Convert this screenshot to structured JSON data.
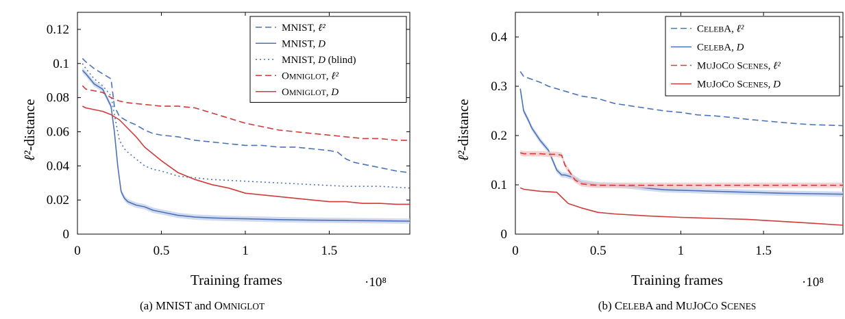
{
  "captions": [
    {
      "parts": [
        {
          "t": "(a) MNIST and O",
          "sc": false
        },
        {
          "t": "MNIGLOT",
          "sc": true
        }
      ]
    },
    {
      "parts": [
        {
          "t": "(b) C",
          "sc": false
        },
        {
          "t": "ELEB",
          "sc": true
        },
        {
          "t": "A and M",
          "sc": false
        },
        {
          "t": "U",
          "sc": true
        },
        {
          "t": "J",
          "sc": false
        },
        {
          "t": "O",
          "sc": true
        },
        {
          "t": "C",
          "sc": false
        },
        {
          "t": "O",
          "sc": true
        },
        {
          "t": " S",
          "sc": false
        },
        {
          "t": "CENES",
          "sc": true
        }
      ]
    }
  ],
  "colors": {
    "blue": "#4a72b8",
    "red": "#cf3a3a",
    "blue_band": "#c5d1ea",
    "red_band": "#f2c5c5"
  },
  "chart_data": [
    {
      "type": "line",
      "xlabel": "Training frames",
      "ylabel": "ℓ²-distance",
      "x_multiplier": "·10⁸",
      "xlim": [
        0,
        1.98
      ],
      "ylim": [
        0,
        0.13
      ],
      "xticks": [
        0,
        0.5,
        1,
        1.5
      ],
      "xtick_labels": [
        "0",
        "0.5",
        "1",
        "1.5"
      ],
      "yticks": [
        0,
        0.02,
        0.04,
        0.06,
        0.08,
        0.1,
        0.12
      ],
      "ytick_labels": [
        "0",
        "0.02",
        "0.04",
        "0.06",
        "0.08",
        "0.1",
        "0.12"
      ],
      "legend_position": "top-right",
      "series": [
        {
          "name_parts": [
            {
              "t": "MNIST, ",
              "sc": false
            },
            {
              "t": "ℓ²",
              "sc": false
            }
          ],
          "color": "blue",
          "style": "dashed",
          "band": false,
          "x": [
            0.03,
            0.05,
            0.1,
            0.15,
            0.2,
            0.22,
            0.25,
            0.3,
            0.35,
            0.4,
            0.45,
            0.5,
            0.6,
            0.7,
            0.8,
            0.9,
            1.0,
            1.1,
            1.2,
            1.3,
            1.4,
            1.5,
            1.55,
            1.6,
            1.65,
            1.7,
            1.8,
            1.9,
            1.98
          ],
          "y": [
            0.103,
            0.101,
            0.097,
            0.094,
            0.091,
            0.075,
            0.069,
            0.066,
            0.064,
            0.061,
            0.059,
            0.058,
            0.057,
            0.055,
            0.054,
            0.053,
            0.052,
            0.052,
            0.051,
            0.051,
            0.05,
            0.049,
            0.048,
            0.044,
            0.042,
            0.041,
            0.039,
            0.037,
            0.036
          ]
        },
        {
          "name_parts": [
            {
              "t": "MNIST, ",
              "sc": false
            },
            {
              "t": "D",
              "sc": false
            }
          ],
          "color": "blue",
          "style": "solid",
          "band": true,
          "x": [
            0.03,
            0.05,
            0.1,
            0.15,
            0.2,
            0.22,
            0.24,
            0.26,
            0.28,
            0.3,
            0.35,
            0.4,
            0.45,
            0.5,
            0.6,
            0.7,
            0.8,
            0.9,
            1.0,
            1.2,
            1.4,
            1.6,
            1.8,
            1.98
          ],
          "y": [
            0.096,
            0.094,
            0.088,
            0.085,
            0.075,
            0.06,
            0.04,
            0.025,
            0.021,
            0.019,
            0.017,
            0.016,
            0.014,
            0.013,
            0.011,
            0.01,
            0.0095,
            0.0092,
            0.009,
            0.0085,
            0.0082,
            0.008,
            0.0078,
            0.0076
          ]
        },
        {
          "name_parts": [
            {
              "t": "MNIST, ",
              "sc": false
            },
            {
              "t": "D",
              "sc": false
            },
            {
              "t": " (blind)",
              "sc": false
            }
          ],
          "color": "blue",
          "style": "dotted",
          "band": false,
          "x": [
            0.03,
            0.05,
            0.1,
            0.15,
            0.2,
            0.22,
            0.25,
            0.28,
            0.3,
            0.35,
            0.4,
            0.45,
            0.5,
            0.6,
            0.8,
            1.0,
            1.2,
            1.4,
            1.6,
            1.8,
            1.98
          ],
          "y": [
            0.1,
            0.097,
            0.091,
            0.087,
            0.081,
            0.07,
            0.055,
            0.05,
            0.048,
            0.044,
            0.04,
            0.038,
            0.037,
            0.034,
            0.032,
            0.031,
            0.03,
            0.029,
            0.028,
            0.028,
            0.027
          ]
        },
        {
          "name_parts": [
            {
              "t": "O",
              "sc": false
            },
            {
              "t": "MNIGLOT",
              "sc": true
            },
            {
              "t": ", ",
              "sc": false
            },
            {
              "t": "ℓ²",
              "sc": false
            }
          ],
          "color": "red",
          "style": "dashed",
          "band": false,
          "x": [
            0.03,
            0.05,
            0.1,
            0.15,
            0.2,
            0.25,
            0.3,
            0.4,
            0.5,
            0.6,
            0.7,
            0.8,
            0.9,
            1.0,
            1.1,
            1.2,
            1.3,
            1.4,
            1.5,
            1.6,
            1.7,
            1.8,
            1.9,
            1.98
          ],
          "y": [
            0.087,
            0.085,
            0.084,
            0.083,
            0.08,
            0.078,
            0.077,
            0.076,
            0.075,
            0.075,
            0.074,
            0.071,
            0.068,
            0.065,
            0.063,
            0.061,
            0.06,
            0.059,
            0.058,
            0.057,
            0.056,
            0.056,
            0.055,
            0.055
          ]
        },
        {
          "name_parts": [
            {
              "t": "O",
              "sc": false
            },
            {
              "t": "MNIGLOT",
              "sc": true
            },
            {
              "t": ", ",
              "sc": false
            },
            {
              "t": "D",
              "sc": false
            }
          ],
          "color": "red",
          "style": "solid",
          "band": false,
          "x": [
            0.03,
            0.05,
            0.1,
            0.15,
            0.2,
            0.25,
            0.3,
            0.35,
            0.4,
            0.5,
            0.6,
            0.7,
            0.8,
            0.9,
            1.0,
            1.1,
            1.2,
            1.3,
            1.4,
            1.5,
            1.6,
            1.7,
            1.8,
            1.9,
            1.98
          ],
          "y": [
            0.075,
            0.074,
            0.073,
            0.072,
            0.07,
            0.067,
            0.062,
            0.057,
            0.051,
            0.043,
            0.036,
            0.032,
            0.029,
            0.027,
            0.024,
            0.023,
            0.022,
            0.021,
            0.02,
            0.019,
            0.019,
            0.018,
            0.018,
            0.0175,
            0.0175
          ]
        }
      ]
    },
    {
      "type": "line",
      "xlabel": "Training frames",
      "ylabel": "ℓ²-distance",
      "x_multiplier": "·10⁸",
      "xlim": [
        0,
        1.98
      ],
      "ylim": [
        0,
        0.45
      ],
      "xticks": [
        0,
        0.5,
        1,
        1.5
      ],
      "xtick_labels": [
        "0",
        "0.5",
        "1",
        "1.5"
      ],
      "yticks": [
        0,
        0.1,
        0.2,
        0.3,
        0.4
      ],
      "ytick_labels": [
        "0",
        "0.1",
        "0.2",
        "0.3",
        "0.4"
      ],
      "legend_position": "top-right",
      "series": [
        {
          "name_parts": [
            {
              "t": "C",
              "sc": false
            },
            {
              "t": "ELEB",
              "sc": true
            },
            {
              "t": "A, ",
              "sc": false
            },
            {
              "t": "ℓ²",
              "sc": false
            }
          ],
          "color": "blue",
          "style": "dashed",
          "band": false,
          "x": [
            0.03,
            0.05,
            0.1,
            0.15,
            0.2,
            0.3,
            0.4,
            0.5,
            0.6,
            0.7,
            0.8,
            0.9,
            1.0,
            1.1,
            1.2,
            1.3,
            1.4,
            1.5,
            1.6,
            1.7,
            1.8,
            1.9,
            1.98
          ],
          "y": [
            0.33,
            0.32,
            0.314,
            0.308,
            0.3,
            0.29,
            0.28,
            0.275,
            0.265,
            0.26,
            0.255,
            0.25,
            0.247,
            0.242,
            0.24,
            0.237,
            0.233,
            0.23,
            0.227,
            0.224,
            0.222,
            0.221,
            0.22
          ]
        },
        {
          "name_parts": [
            {
              "t": "C",
              "sc": false
            },
            {
              "t": "ELEB",
              "sc": true
            },
            {
              "t": "A, ",
              "sc": false
            },
            {
              "t": "D",
              "sc": false
            }
          ],
          "color": "blue",
          "style": "solid",
          "band": true,
          "x": [
            0.03,
            0.05,
            0.08,
            0.1,
            0.15,
            0.2,
            0.25,
            0.28,
            0.3,
            0.35,
            0.4,
            0.5,
            0.6,
            0.7,
            0.8,
            0.9,
            1.0,
            1.2,
            1.4,
            1.6,
            1.8,
            1.98
          ],
          "y": [
            0.295,
            0.25,
            0.23,
            0.215,
            0.19,
            0.17,
            0.13,
            0.12,
            0.12,
            0.115,
            0.105,
            0.1,
            0.099,
            0.097,
            0.093,
            0.09,
            0.089,
            0.087,
            0.085,
            0.083,
            0.082,
            0.081
          ]
        },
        {
          "name_parts": [
            {
              "t": "M",
              "sc": false
            },
            {
              "t": "U",
              "sc": true
            },
            {
              "t": "J",
              "sc": false
            },
            {
              "t": "O",
              "sc": true
            },
            {
              "t": "C",
              "sc": false
            },
            {
              "t": "O",
              "sc": true
            },
            {
              "t": " S",
              "sc": false
            },
            {
              "t": "CENES",
              "sc": true
            },
            {
              "t": ", ",
              "sc": false
            },
            {
              "t": "ℓ²",
              "sc": false
            }
          ],
          "color": "red",
          "style": "dashed",
          "band": true,
          "x": [
            0.03,
            0.05,
            0.1,
            0.15,
            0.2,
            0.25,
            0.28,
            0.3,
            0.33,
            0.36,
            0.4,
            0.45,
            0.5,
            0.7,
            1.0,
            1.3,
            1.6,
            1.98
          ],
          "y": [
            0.165,
            0.163,
            0.163,
            0.163,
            0.162,
            0.162,
            0.16,
            0.14,
            0.125,
            0.11,
            0.102,
            0.1,
            0.099,
            0.099,
            0.099,
            0.099,
            0.099,
            0.099
          ]
        },
        {
          "name_parts": [
            {
              "t": "M",
              "sc": false
            },
            {
              "t": "U",
              "sc": true
            },
            {
              "t": "J",
              "sc": false
            },
            {
              "t": "O",
              "sc": true
            },
            {
              "t": "C",
              "sc": false
            },
            {
              "t": "O",
              "sc": true
            },
            {
              "t": " S",
              "sc": false
            },
            {
              "t": "CENES",
              "sc": true
            },
            {
              "t": ", ",
              "sc": false
            },
            {
              "t": "D",
              "sc": false
            }
          ],
          "color": "red",
          "style": "solid",
          "band": false,
          "x": [
            0.03,
            0.05,
            0.1,
            0.15,
            0.2,
            0.25,
            0.28,
            0.32,
            0.4,
            0.5,
            0.6,
            0.8,
            1.0,
            1.2,
            1.4,
            1.6,
            1.8,
            1.98
          ],
          "y": [
            0.094,
            0.091,
            0.089,
            0.087,
            0.086,
            0.085,
            0.075,
            0.062,
            0.053,
            0.044,
            0.041,
            0.037,
            0.034,
            0.032,
            0.03,
            0.026,
            0.022,
            0.018
          ]
        }
      ]
    }
  ]
}
